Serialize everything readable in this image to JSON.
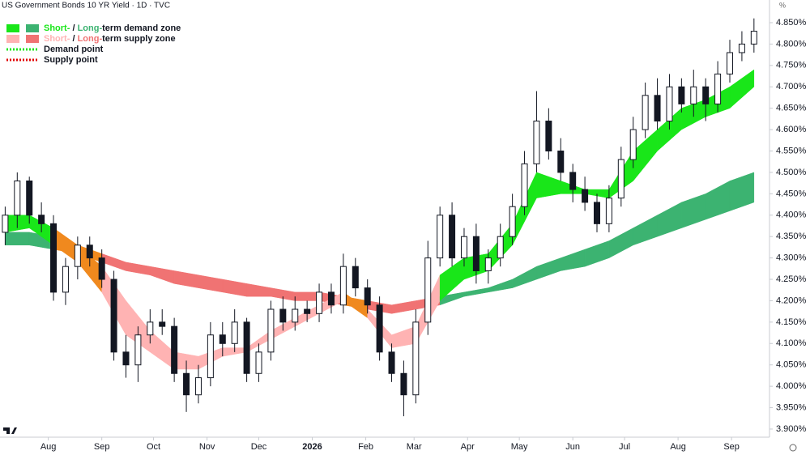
{
  "chart_data": {
    "type": "candlestick",
    "title": "US Government Bonds 10 YR Yield · 1D · TVC",
    "unit_label": "%",
    "xlim": [
      -28,
      418
    ],
    "xticks": [
      {
        "value": 0,
        "label": "Aug"
      },
      {
        "value": 31,
        "label": "Sep"
      },
      {
        "value": 61,
        "label": "Oct"
      },
      {
        "value": 92,
        "label": "Nov"
      },
      {
        "value": 122,
        "label": "Dec"
      },
      {
        "value": 153,
        "label": "2026"
      },
      {
        "value": 184,
        "label": "Feb"
      },
      {
        "value": 212,
        "label": "Mar"
      },
      {
        "value": 243,
        "label": "Apr"
      },
      {
        "value": 273,
        "label": "May"
      },
      {
        "value": 304,
        "label": "Jun"
      },
      {
        "value": 334,
        "label": "Jul"
      },
      {
        "value": 365,
        "label": "Aug"
      },
      {
        "value": 396,
        "label": "Sep"
      }
    ],
    "ylim": [
      3.881,
      4.903
    ],
    "yticks": [
      {
        "value": 3.9,
        "label": "3.900%"
      },
      {
        "value": 3.95,
        "label": "3.950%"
      },
      {
        "value": 4.0,
        "label": "4.000%"
      },
      {
        "value": 4.05,
        "label": "4.050%"
      },
      {
        "value": 4.1,
        "label": "4.100%"
      },
      {
        "value": 4.15,
        "label": "4.150%"
      },
      {
        "value": 4.2,
        "label": "4.200%"
      },
      {
        "value": 4.25,
        "label": "4.250%"
      },
      {
        "value": 4.3,
        "label": "4.300%"
      },
      {
        "value": 4.35,
        "label": "4.350%"
      },
      {
        "value": 4.4,
        "label": "4.400%"
      },
      {
        "value": 4.45,
        "label": "4.450%"
      },
      {
        "value": 4.5,
        "label": "4.500%"
      },
      {
        "value": 4.55,
        "label": "4.550%"
      },
      {
        "value": 4.6,
        "label": "4.600%"
      },
      {
        "value": 4.65,
        "label": "4.650%"
      },
      {
        "value": 4.7,
        "label": "4.700%"
      },
      {
        "value": 4.75,
        "label": "4.750%"
      },
      {
        "value": 4.8,
        "label": "4.800%"
      },
      {
        "value": 4.85,
        "label": "4.850%"
      }
    ],
    "x": [
      -25,
      -18,
      -11,
      -4,
      3,
      10,
      17,
      24,
      31,
      38,
      45,
      52,
      59,
      66,
      73,
      80,
      87,
      94,
      101,
      108,
      115,
      122,
      129,
      136,
      143,
      150,
      157,
      164,
      171,
      178,
      185,
      192,
      199,
      206,
      213,
      220,
      227,
      234,
      241,
      248,
      255,
      262,
      269,
      276,
      283,
      290,
      297,
      304,
      311,
      318,
      325,
      332,
      339,
      346,
      353,
      360,
      367,
      374,
      381,
      388,
      395,
      402,
      409
    ],
    "open": [
      4.36,
      4.4,
      4.48,
      4.4,
      4.38,
      4.22,
      4.28,
      4.33,
      4.3,
      4.25,
      4.08,
      4.05,
      4.12,
      4.15,
      4.14,
      4.03,
      3.98,
      4.02,
      4.12,
      4.1,
      4.15,
      4.03,
      4.08,
      4.18,
      4.15,
      4.18,
      4.17,
      4.22,
      4.19,
      4.28,
      4.23,
      4.19,
      4.08,
      4.03,
      3.98,
      4.15,
      4.3,
      4.4,
      4.3,
      4.35,
      4.27,
      4.3,
      4.35,
      4.42,
      4.52,
      4.62,
      4.55,
      4.5,
      4.46,
      4.43,
      4.38,
      4.44,
      4.53,
      4.6,
      4.68,
      4.62,
      4.7,
      4.66,
      4.7,
      4.66,
      4.73,
      4.78,
      4.8
    ],
    "high": [
      4.42,
      4.5,
      4.49,
      4.43,
      4.4,
      4.3,
      4.35,
      4.35,
      4.32,
      4.27,
      4.12,
      4.14,
      4.18,
      4.18,
      4.16,
      4.06,
      4.05,
      4.15,
      4.15,
      4.18,
      4.16,
      4.1,
      4.2,
      4.21,
      4.21,
      4.2,
      4.24,
      4.24,
      4.31,
      4.3,
      4.25,
      4.21,
      4.1,
      4.06,
      4.18,
      4.34,
      4.42,
      4.43,
      4.37,
      4.38,
      4.32,
      4.38,
      4.45,
      4.55,
      4.69,
      4.65,
      4.58,
      4.52,
      4.49,
      4.45,
      4.47,
      4.56,
      4.63,
      4.71,
      4.72,
      4.73,
      4.72,
      4.74,
      4.72,
      4.76,
      4.81,
      4.83,
      4.86
    ],
    "low": [
      4.33,
      4.37,
      4.38,
      4.36,
      4.2,
      4.19,
      4.25,
      4.28,
      4.23,
      4.06,
      4.02,
      4.01,
      4.1,
      4.12,
      4.01,
      3.94,
      3.96,
      4.0,
      4.07,
      4.08,
      4.01,
      4.01,
      4.06,
      4.13,
      4.13,
      4.15,
      4.15,
      4.17,
      4.17,
      4.21,
      4.17,
      4.06,
      4.01,
      3.93,
      3.96,
      4.12,
      4.28,
      4.28,
      4.28,
      4.24,
      4.24,
      4.28,
      4.33,
      4.4,
      4.5,
      4.53,
      4.48,
      4.43,
      4.41,
      4.36,
      4.36,
      4.42,
      4.51,
      4.58,
      4.6,
      4.6,
      4.64,
      4.63,
      4.62,
      4.64,
      4.71,
      4.76,
      4.78
    ],
    "close": [
      4.4,
      4.48,
      4.4,
      4.38,
      4.22,
      4.28,
      4.33,
      4.3,
      4.25,
      4.08,
      4.05,
      4.12,
      4.15,
      4.14,
      4.03,
      3.98,
      4.02,
      4.12,
      4.1,
      4.15,
      4.03,
      4.08,
      4.18,
      4.15,
      4.18,
      4.17,
      4.22,
      4.19,
      4.28,
      4.23,
      4.19,
      4.08,
      4.03,
      3.98,
      4.15,
      4.3,
      4.4,
      4.3,
      4.35,
      4.27,
      4.3,
      4.35,
      4.42,
      4.52,
      4.62,
      4.55,
      4.5,
      4.46,
      4.43,
      4.38,
      4.44,
      4.53,
      4.6,
      4.68,
      4.62,
      4.7,
      4.66,
      4.7,
      4.66,
      4.73,
      4.78,
      4.8,
      4.83
    ],
    "zones": {
      "x": [
        -25,
        -11,
        3,
        17,
        31,
        45,
        59,
        73,
        87,
        101,
        115,
        129,
        143,
        157,
        171,
        185,
        199,
        213,
        227,
        241,
        255,
        269,
        283,
        297,
        311,
        325,
        339,
        353,
        367,
        381,
        395,
        409
      ],
      "short_upper": [
        4.4,
        4.4,
        4.37,
        4.33,
        4.28,
        4.2,
        4.13,
        4.08,
        4.07,
        4.09,
        4.09,
        4.13,
        4.16,
        4.19,
        4.22,
        4.18,
        4.12,
        4.14,
        4.26,
        4.3,
        4.31,
        4.38,
        4.5,
        4.48,
        4.46,
        4.46,
        4.55,
        4.6,
        4.65,
        4.67,
        4.7,
        4.74
      ],
      "short_lower": [
        4.36,
        4.37,
        4.33,
        4.29,
        4.22,
        4.12,
        4.08,
        4.04,
        4.04,
        4.07,
        4.08,
        4.11,
        4.14,
        4.17,
        4.2,
        4.16,
        4.09,
        4.1,
        4.2,
        4.25,
        4.27,
        4.33,
        4.44,
        4.45,
        4.45,
        4.44,
        4.48,
        4.55,
        4.6,
        4.63,
        4.65,
        4.7
      ],
      "long_upper": [
        4.36,
        4.36,
        4.35,
        4.33,
        4.31,
        4.29,
        4.28,
        4.27,
        4.26,
        4.25,
        4.24,
        4.23,
        4.22,
        4.22,
        4.21,
        4.2,
        4.19,
        4.2,
        4.21,
        4.22,
        4.23,
        4.25,
        4.28,
        4.3,
        4.32,
        4.34,
        4.37,
        4.4,
        4.43,
        4.45,
        4.48,
        4.5
      ],
      "long_lower": [
        4.33,
        4.33,
        4.32,
        4.31,
        4.29,
        4.27,
        4.26,
        4.24,
        4.23,
        4.22,
        4.21,
        4.21,
        4.2,
        4.2,
        4.19,
        4.18,
        4.17,
        4.18,
        4.19,
        4.21,
        4.22,
        4.23,
        4.25,
        4.27,
        4.28,
        4.3,
        4.33,
        4.35,
        4.37,
        4.39,
        4.41,
        4.43
      ]
    },
    "zone_colors": {
      "short_demand": "#19e619",
      "long_demand": "#3cb371",
      "short_supply": "#ffb3b3",
      "long_supply": "#f07373",
      "neutral": "#f0891e"
    },
    "legend": [
      {
        "swatches": [
          "#19e619",
          "#3cb371"
        ],
        "parts": [
          {
            "text": "Short-",
            "color": "#19e619"
          },
          {
            "text": " / "
          },
          {
            "text": "Long-",
            "color": "#3cb371"
          },
          {
            "text": "term demand zone"
          }
        ]
      },
      {
        "swatches": [
          "#ffb3b3",
          "#f07373"
        ],
        "parts": [
          {
            "text": "Short-",
            "color": "#ffb3b3"
          },
          {
            "text": " / "
          },
          {
            "text": "Long-",
            "color": "#f07373"
          },
          {
            "text": "term supply zone"
          }
        ]
      },
      {
        "dotted": "#19e619",
        "parts": [
          {
            "text": "Demand point"
          }
        ]
      },
      {
        "dotted": "#e00000",
        "parts": [
          {
            "text": "Supply point"
          }
        ]
      }
    ]
  }
}
